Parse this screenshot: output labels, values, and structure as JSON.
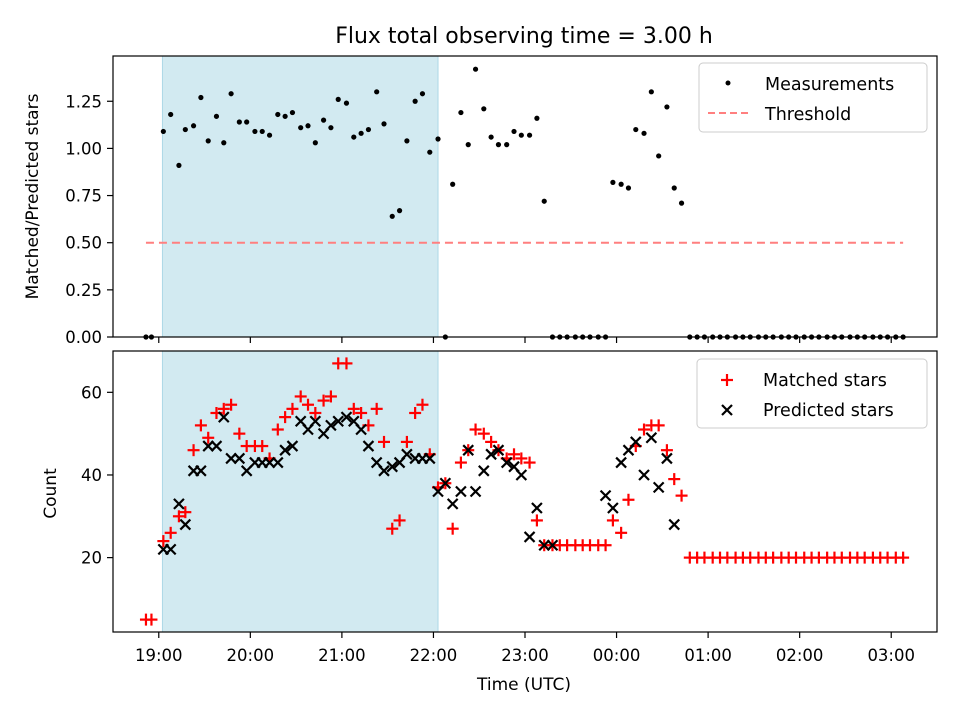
{
  "title": "Flux total observing time = 3.00 h",
  "xlabel": "Time (UTC)",
  "xtick_labels": [
    "19:00",
    "20:00",
    "21:00",
    "22:00",
    "23:00",
    "00:00",
    "01:00",
    "02:00",
    "03:00"
  ],
  "colors": {
    "shade": "#add8e6",
    "measure": "#000000",
    "threshold": "#ff7f7f",
    "matched": "#ff0000",
    "predicted": "#000000"
  },
  "chart_data": [
    {
      "type": "scatter",
      "ylabel": "Matched/Predicted stars",
      "x_unit": "hours since 19:00 UTC",
      "xlim": [
        -0.5,
        8.5
      ],
      "ylim": [
        0,
        1.49
      ],
      "yticks": [
        "0.00",
        "0.25",
        "0.50",
        "0.75",
        "1.00",
        "1.25"
      ],
      "grid": false,
      "legend_position": "top-right",
      "shaded_interval": [
        0.04,
        3.05
      ],
      "series": [
        {
          "name": "Measurements",
          "marker": "dot",
          "color": "#000000",
          "x": [
            -0.14,
            -0.08,
            0.05,
            0.13,
            0.22,
            0.29,
            0.38,
            0.46,
            0.54,
            0.63,
            0.71,
            0.79,
            0.88,
            0.96,
            1.05,
            1.13,
            1.21,
            1.3,
            1.38,
            1.46,
            1.55,
            1.63,
            1.71,
            1.8,
            1.88,
            1.96,
            2.05,
            2.13,
            2.21,
            2.29,
            2.38,
            2.46,
            2.55,
            2.63,
            2.71,
            2.8,
            2.88,
            2.96,
            3.05,
            3.13,
            3.21,
            3.3,
            3.38,
            3.46,
            3.55,
            3.63,
            3.71,
            3.8,
            3.88,
            3.96,
            4.05,
            4.13,
            4.21,
            4.3,
            4.38,
            4.46,
            4.55,
            4.63,
            4.71,
            4.8,
            4.88,
            4.96,
            5.05,
            5.13,
            5.21,
            5.3,
            5.38,
            5.46,
            5.55,
            5.63,
            5.71,
            5.8,
            5.88,
            5.96,
            6.05,
            6.13,
            6.21,
            6.3,
            6.38,
            6.46,
            6.55,
            6.63,
            6.71,
            6.8,
            6.88,
            6.96,
            7.05,
            7.13,
            7.21,
            7.3,
            7.38,
            7.46,
            7.55,
            7.63,
            7.71,
            7.8,
            7.88,
            7.96,
            8.05,
            8.13
          ],
          "y": [
            0.0,
            0.0,
            1.09,
            1.18,
            0.91,
            1.1,
            1.12,
            1.27,
            1.04,
            1.17,
            1.03,
            1.29,
            1.14,
            1.14,
            1.09,
            1.09,
            1.07,
            1.18,
            1.17,
            1.19,
            1.11,
            1.12,
            1.03,
            1.15,
            1.11,
            1.26,
            1.24,
            1.06,
            1.08,
            1.1,
            1.3,
            1.13,
            0.64,
            0.67,
            1.04,
            1.25,
            1.29,
            0.98,
            1.05,
            0.0,
            0.81,
            1.19,
            1.02,
            1.42,
            1.21,
            1.06,
            1.02,
            1.02,
            1.09,
            1.07,
            1.07,
            1.16,
            0.72,
            0.0,
            0.0,
            0.0,
            0.0,
            0.0,
            0.0,
            0.0,
            0.0,
            0.82,
            0.81,
            0.79,
            1.1,
            1.08,
            1.3,
            0.96,
            1.22,
            0.79,
            0.71,
            0.0,
            0.0,
            0.0,
            0.0,
            0.0,
            0.0,
            0.0,
            0.0,
            0.0,
            0.0,
            0.0,
            0.0,
            0.0,
            0.0,
            0.0,
            0.0,
            0.0,
            0.0,
            0.0,
            0.0,
            0.0,
            0.0,
            0.0,
            0.0,
            0.0,
            0.0,
            0.0,
            0.0,
            0.0
          ]
        },
        {
          "name": "Threshold",
          "style": "dashed",
          "color": "#ff7f7f",
          "x": [
            -0.14,
            8.13
          ],
          "y": [
            0.5,
            0.5
          ]
        }
      ]
    },
    {
      "type": "scatter",
      "ylabel": "Count",
      "x_unit": "hours since 19:00 UTC",
      "xlim": [
        -0.5,
        8.5
      ],
      "ylim": [
        2,
        70
      ],
      "yticks": [
        "20",
        "40",
        "60"
      ],
      "grid": false,
      "legend_position": "top-right",
      "shaded_interval": [
        0.04,
        3.05
      ],
      "series": [
        {
          "name": "Matched stars",
          "marker": "plus",
          "color": "#ff0000",
          "x": [
            -0.14,
            -0.08,
            0.05,
            0.13,
            0.22,
            0.29,
            0.38,
            0.46,
            0.54,
            0.63,
            0.71,
            0.79,
            0.88,
            0.96,
            1.05,
            1.13,
            1.21,
            1.3,
            1.38,
            1.46,
            1.55,
            1.63,
            1.71,
            1.8,
            1.88,
            1.96,
            2.05,
            2.13,
            2.21,
            2.29,
            2.38,
            2.46,
            2.55,
            2.63,
            2.71,
            2.8,
            2.88,
            2.96,
            3.05,
            3.13,
            3.21,
            3.3,
            3.38,
            3.46,
            3.55,
            3.63,
            3.71,
            3.8,
            3.88,
            3.96,
            4.05,
            4.13,
            4.21,
            4.3,
            4.38,
            4.46,
            4.55,
            4.63,
            4.71,
            4.8,
            4.88,
            4.96,
            5.05,
            5.13,
            5.21,
            5.3,
            5.38,
            5.46,
            5.55,
            5.63,
            5.71,
            5.8,
            5.88,
            5.96,
            6.05,
            6.13,
            6.21,
            6.3,
            6.38,
            6.46,
            6.55,
            6.63,
            6.71,
            6.8,
            6.88,
            6.96,
            7.05,
            7.13,
            7.21,
            7.3,
            7.38,
            7.46,
            7.55,
            7.63,
            7.71,
            7.8,
            7.88,
            7.96,
            8.05,
            8.13
          ],
          "y": [
            5,
            5,
            24,
            26,
            30,
            31,
            46,
            52,
            49,
            55,
            56,
            57,
            50,
            47,
            47,
            47,
            44,
            51,
            54,
            56,
            59,
            57,
            55,
            58,
            59,
            67,
            67,
            56,
            55,
            52,
            56,
            48,
            27,
            29,
            48,
            55,
            57,
            45,
            37,
            38,
            27,
            43,
            46,
            51,
            50,
            48,
            46,
            44,
            45,
            44,
            43,
            29,
            23,
            23,
            23,
            23,
            23,
            23,
            23,
            23,
            23,
            29,
            26,
            34,
            47,
            51,
            52,
            52,
            46,
            39,
            35,
            20,
            20,
            20,
            20,
            20,
            20,
            20,
            20,
            20,
            20,
            20,
            20,
            20,
            20,
            20,
            20,
            20,
            20,
            20,
            20,
            20,
            20,
            20,
            20,
            20,
            20,
            20,
            20,
            20
          ]
        },
        {
          "name": "Predicted stars",
          "marker": "x",
          "color": "#000000",
          "x": [
            0.05,
            0.13,
            0.22,
            0.29,
            0.38,
            0.46,
            0.54,
            0.63,
            0.71,
            0.79,
            0.88,
            0.96,
            1.05,
            1.13,
            1.21,
            1.3,
            1.38,
            1.46,
            1.55,
            1.63,
            1.71,
            1.8,
            1.88,
            1.96,
            2.05,
            2.13,
            2.21,
            2.29,
            2.38,
            2.46,
            2.55,
            2.63,
            2.71,
            2.8,
            2.88,
            2.96,
            3.05,
            3.13,
            3.21,
            3.3,
            3.38,
            3.46,
            3.55,
            3.63,
            3.71,
            3.8,
            3.88,
            3.96,
            4.05,
            4.13,
            4.21,
            4.3,
            4.88,
            4.96,
            5.05,
            5.13,
            5.21,
            5.3,
            5.38,
            5.46,
            5.55,
            5.63
          ],
          "y": [
            22,
            22,
            33,
            28,
            41,
            41,
            47,
            47,
            54,
            44,
            44,
            41,
            43,
            43,
            43,
            43,
            46,
            47,
            53,
            51,
            53,
            50,
            52,
            53,
            54,
            53,
            51,
            47,
            43,
            41,
            42,
            43,
            45,
            44,
            44,
            44,
            36,
            38,
            33,
            36,
            46,
            36,
            41,
            45,
            46,
            43,
            42,
            40,
            25,
            32,
            23,
            23,
            35,
            32,
            43,
            46,
            48,
            40,
            49,
            37,
            44,
            28
          ]
        }
      ]
    }
  ],
  "legend": {
    "top": [
      {
        "label": "Measurements"
      },
      {
        "label": "Threshold"
      }
    ],
    "bottom": [
      {
        "label": "Matched stars"
      },
      {
        "label": "Predicted stars"
      }
    ]
  }
}
